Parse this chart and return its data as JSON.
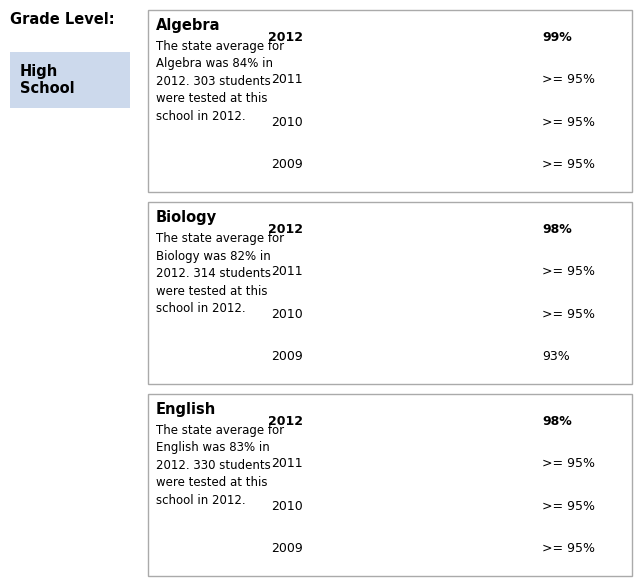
{
  "grade_label": "Grade Level:",
  "grade_value": "High\nSchool",
  "grade_bg": "#ccd9ec",
  "subjects": [
    {
      "name": "Algebra",
      "desc": "The state average for\nAlgebra was 84% in\n2012. 303 students\nwere tested at this\nschool in 2012.",
      "years": [
        "2012",
        "2011",
        "2010",
        "2009"
      ],
      "values": [
        99,
        95,
        95,
        95
      ],
      "labels": [
        "99%",
        ">= 95%",
        ">= 95%",
        ">= 95%"
      ],
      "bar_colors": [
        "#4f86c0",
        "#c8c8c8",
        "#c8c8c8",
        "#c8c8c8"
      ]
    },
    {
      "name": "Biology",
      "desc": "The state average for\nBiology was 82% in\n2012. 314 students\nwere tested at this\nschool in 2012.",
      "years": [
        "2012",
        "2011",
        "2010",
        "2009"
      ],
      "values": [
        98,
        95,
        95,
        93
      ],
      "labels": [
        "98%",
        ">= 95%",
        ">= 95%",
        "93%"
      ],
      "bar_colors": [
        "#4f86c0",
        "#c8c8c8",
        "#c8c8c8",
        "#c8c8c8"
      ]
    },
    {
      "name": "English",
      "desc": "The state average for\nEnglish was 83% in\n2012. 330 students\nwere tested at this\nschool in 2012.",
      "years": [
        "2012",
        "2011",
        "2010",
        "2009"
      ],
      "values": [
        98,
        95,
        95,
        95
      ],
      "labels": [
        "98%",
        ">= 95%",
        ">= 95%",
        ">= 95%"
      ],
      "bar_colors": [
        "#4f86c0",
        "#c8c8c8",
        "#c8c8c8",
        "#c8c8c8"
      ]
    }
  ],
  "bg_color": "#ffffff",
  "box_edge_color": "#aaaaaa",
  "bar_max": 100,
  "bar_height": 0.55,
  "year_fontsize": 9,
  "label_fontsize": 9,
  "subject_fontsize": 10.5,
  "desc_fontsize": 8.5,
  "grade_label_fontsize": 10.5,
  "grade_value_fontsize": 10.5
}
